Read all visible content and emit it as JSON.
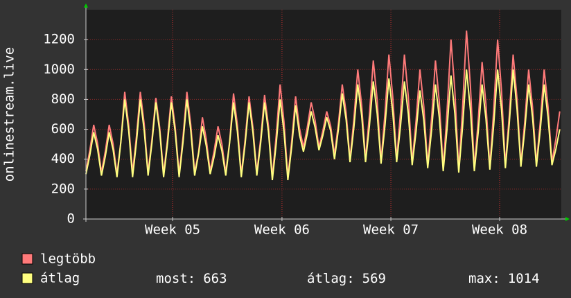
{
  "chart_data": {
    "type": "line",
    "ylabel": "onlinestream.live",
    "xlim": [
      0,
      30.6
    ],
    "xticks": [
      {
        "value": 5.58,
        "label": "Week 05"
      },
      {
        "value": 12.62,
        "label": "Week 06"
      },
      {
        "value": 19.63,
        "label": "Week 07"
      },
      {
        "value": 26.63,
        "label": "Week 08"
      }
    ],
    "ylim": [
      0,
      1400
    ],
    "yticks": [
      0,
      200,
      400,
      600,
      800,
      1000,
      1200
    ],
    "grid": true,
    "x": [
      0,
      0.25,
      0.5,
      0.75,
      1,
      1.25,
      1.5,
      1.75,
      2,
      2.25,
      2.5,
      2.75,
      3,
      3.25,
      3.5,
      3.75,
      4,
      4.25,
      4.5,
      4.75,
      5,
      5.25,
      5.5,
      5.75,
      6,
      6.25,
      6.5,
      6.75,
      7,
      7.25,
      7.5,
      7.75,
      8,
      8.25,
      8.5,
      8.75,
      9,
      9.25,
      9.5,
      9.75,
      10,
      10.25,
      10.5,
      10.75,
      11,
      11.25,
      11.5,
      11.75,
      12,
      12.25,
      12.5,
      12.75,
      13,
      13.25,
      13.5,
      13.75,
      14,
      14.25,
      14.5,
      14.75,
      15,
      15.25,
      15.5,
      15.75,
      16,
      16.25,
      16.5,
      16.75,
      17,
      17.25,
      17.5,
      17.75,
      18,
      18.25,
      18.5,
      18.75,
      19,
      19.25,
      19.5,
      19.75,
      20,
      20.25,
      20.5,
      20.75,
      21,
      21.25,
      21.5,
      21.75,
      22,
      22.25,
      22.5,
      22.75,
      23,
      23.25,
      23.5,
      23.75,
      24,
      24.25,
      24.5,
      24.75,
      25,
      25.25,
      25.5,
      25.75,
      26,
      26.25,
      26.5,
      26.75,
      27,
      27.25,
      27.5,
      27.75,
      28,
      28.25,
      28.5,
      28.75,
      29,
      29.25,
      29.5,
      29.75,
      30,
      30.25,
      30.5
    ],
    "series": [
      {
        "name": "legtöbb",
        "color": "#ff7a7a",
        "values": [
          320,
          459,
          630,
          506,
          310,
          454,
          630,
          502,
          300,
          518,
          850,
          630,
          310,
          553,
          850,
          634,
          310,
          535,
          810,
          610,
          300,
          534,
          820,
          612,
          300,
          548,
          850,
          630,
          310,
          446,
          680,
          532,
          320,
          455,
          620,
          500,
          310,
          518,
          840,
          628,
          300,
          534,
          820,
          612,
          310,
          539,
          830,
          622,
          280,
          559,
          900,
          652,
          280,
          523,
          820,
          604,
          480,
          615,
          780,
          660,
          480,
          590,
          720,
          624,
          430,
          636,
          900,
          712,
          400,
          670,
          1000,
          760,
          400,
          697,
          1060,
          796,
          390,
          710,
          1100,
          816,
          400,
          715,
          1100,
          820,
          380,
          659,
          1000,
          752,
          360,
          675,
          1060,
          780,
          340,
          727,
          1200,
          856,
          330,
          749,
          1260,
          888,
          340,
          660,
          1050,
          766,
          350,
          733,
          1200,
          860,
          360,
          692,
          1100,
          804,
          370,
          653,
          1000,
          748,
          370,
          653,
          1000,
          748,
          380,
          534,
          720
        ]
      },
      {
        "name": "átlag",
        "color": "#ffff80",
        "values": [
          300,
          426,
          580,
          468,
          290,
          419,
          580,
          464,
          280,
          514,
          800,
          592,
          280,
          514,
          800,
          592,
          290,
          510,
          780,
          584,
          280,
          505,
          780,
          580,
          280,
          514,
          800,
          592,
          290,
          434,
          620,
          488,
          300,
          417,
          560,
          456,
          290,
          512,
          780,
          584,
          280,
          505,
          780,
          580,
          290,
          510,
          780,
          584,
          260,
          503,
          800,
          584,
          260,
          485,
          760,
          560,
          450,
          572,
          720,
          612,
          460,
          559,
          680,
          592,
          400,
          598,
          840,
          664,
          380,
          614,
          900,
          692,
          380,
          623,
          920,
          704,
          370,
          627,
          940,
          712,
          380,
          623,
          920,
          704,
          360,
          585,
          860,
          660,
          340,
          592,
          900,
          676,
          320,
          608,
          960,
          704,
          310,
          621,
          1000,
          724,
          320,
          581,
          900,
          668,
          330,
          632,
          1000,
          732,
          340,
          637,
          1000,
          736,
          350,
          598,
          900,
          680,
          350,
          598,
          900,
          680,
          360,
          468,
          600
        ]
      }
    ],
    "stats": [
      {
        "label": "most:",
        "value": 663
      },
      {
        "label": "átlag:",
        "value": 569
      },
      {
        "label": "max:",
        "value": 1014
      }
    ]
  }
}
